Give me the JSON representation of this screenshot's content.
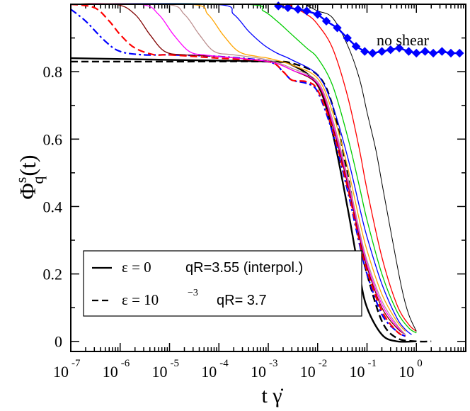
{
  "chart_data": {
    "type": "line",
    "x_scale": "log",
    "xlim": [
      1e-07,
      10
    ],
    "ylim": [
      -0.03,
      1.0
    ],
    "grid": false,
    "xlabel": "t γ̇",
    "ylabel": "Φ_q^s(t)",
    "x_ticks": [
      {
        "base": "10",
        "exp": "-7",
        "value": 1e-07
      },
      {
        "base": "10",
        "exp": "-6",
        "value": 1e-06
      },
      {
        "base": "10",
        "exp": "-5",
        "value": 1e-05
      },
      {
        "base": "10",
        "exp": "-4",
        "value": 0.0001
      },
      {
        "base": "10",
        "exp": "-3",
        "value": 0.001
      },
      {
        "base": "10",
        "exp": "-2",
        "value": 0.01
      },
      {
        "base": "10",
        "exp": "-1",
        "value": 0.1
      },
      {
        "base": "10",
        "exp": "0",
        "value": 1
      }
    ],
    "y_ticks": [
      {
        "label": "0",
        "value": 0
      },
      {
        "label": "0.2",
        "value": 0.2
      },
      {
        "label": "0.4",
        "value": 0.4
      },
      {
        "label": "0.6",
        "value": 0.6
      },
      {
        "label": "0.8",
        "value": 0.8
      }
    ],
    "annotation": "no shear",
    "legend": {
      "position": "lower-left",
      "entries": [
        {
          "style": "solid",
          "eps": "ε = 0",
          "q": "qR=3.55 (interpol.)"
        },
        {
          "style": "dashed",
          "eps": "ε = 10",
          "eps_exp": "−3",
          "q": "qR= 3.7"
        }
      ]
    },
    "series": [
      {
        "style": "solid",
        "color": "#000000",
        "width": 2.4,
        "points": [
          [
            1e-07,
            0.84
          ],
          [
            1e-05,
            0.835
          ],
          [
            0.001,
            0.83
          ],
          [
            0.003,
            0.82
          ],
          [
            0.01,
            0.76
          ],
          [
            0.02,
            0.62
          ],
          [
            0.04,
            0.4
          ],
          [
            0.07,
            0.2
          ],
          [
            0.1,
            0.1
          ],
          [
            0.2,
            0.02
          ],
          [
            0.4,
            0.0
          ],
          [
            1,
            0.0
          ]
        ]
      },
      {
        "style": "dashed",
        "color": "#000000",
        "width": 2.4,
        "points": [
          [
            1e-07,
            0.83
          ],
          [
            1e-05,
            0.83
          ],
          [
            0.001,
            0.83
          ],
          [
            0.003,
            0.825
          ],
          [
            0.01,
            0.79
          ],
          [
            0.02,
            0.7
          ],
          [
            0.04,
            0.5
          ],
          [
            0.07,
            0.3
          ],
          [
            0.1,
            0.2
          ],
          [
            0.2,
            0.06
          ],
          [
            0.4,
            0.01
          ],
          [
            1,
            0.0
          ],
          [
            2,
            0.0
          ]
        ]
      },
      {
        "style": "dashdot",
        "color": "#0000ff",
        "width": 2.2,
        "points": [
          [
            1e-07,
            0.985
          ],
          [
            2e-07,
            0.95
          ],
          [
            5e-07,
            0.89
          ],
          [
            1e-06,
            0.86
          ],
          [
            3e-06,
            0.85
          ],
          [
            1e-05,
            0.85
          ],
          [
            0.0001,
            0.845
          ],
          [
            0.001,
            0.83
          ],
          [
            0.002,
            0.8
          ],
          [
            0.003,
            0.775
          ],
          [
            0.006,
            0.765
          ],
          [
            0.01,
            0.74
          ],
          [
            0.02,
            0.62
          ],
          [
            0.04,
            0.45
          ],
          [
            0.07,
            0.29
          ],
          [
            0.1,
            0.2
          ],
          [
            0.2,
            0.08
          ],
          [
            0.4,
            0.03
          ],
          [
            0.6,
            0.015
          ]
        ]
      },
      {
        "style": "dashed",
        "color": "#ff0000",
        "width": 2.2,
        "points": [
          [
            1e-07,
            1.0
          ],
          [
            3e-07,
            0.99
          ],
          [
            6e-07,
            0.95
          ],
          [
            1e-06,
            0.91
          ],
          [
            2e-06,
            0.87
          ],
          [
            5e-06,
            0.85
          ],
          [
            1e-05,
            0.85
          ],
          [
            0.0001,
            0.84
          ],
          [
            0.001,
            0.83
          ],
          [
            0.002,
            0.8
          ],
          [
            0.003,
            0.775
          ],
          [
            0.006,
            0.77
          ],
          [
            0.01,
            0.745
          ],
          [
            0.02,
            0.63
          ],
          [
            0.04,
            0.46
          ],
          [
            0.07,
            0.3
          ],
          [
            0.1,
            0.21
          ],
          [
            0.2,
            0.09
          ],
          [
            0.4,
            0.03
          ],
          [
            0.6,
            0.015
          ]
        ]
      },
      {
        "style": "solid",
        "color": "#800000",
        "width": 1.3,
        "points": [
          [
            1e-07,
            1.0
          ],
          [
            8e-07,
            1.0
          ],
          [
            2e-06,
            0.97
          ],
          [
            4e-06,
            0.91
          ],
          [
            8e-06,
            0.86
          ],
          [
            2e-05,
            0.85
          ],
          [
            0.0001,
            0.845
          ],
          [
            0.001,
            0.83
          ],
          [
            0.003,
            0.805
          ],
          [
            0.01,
            0.76
          ],
          [
            0.02,
            0.64
          ],
          [
            0.04,
            0.47
          ],
          [
            0.07,
            0.31
          ],
          [
            0.1,
            0.22
          ],
          [
            0.2,
            0.1
          ],
          [
            0.4,
            0.04
          ],
          [
            0.6,
            0.02
          ]
        ]
      },
      {
        "style": "solid",
        "color": "#ff00ff",
        "width": 1.3,
        "points": [
          [
            1e-07,
            1.0
          ],
          [
            2.5e-06,
            1.0
          ],
          [
            6e-06,
            0.97
          ],
          [
            1.2e-05,
            0.91
          ],
          [
            2.5e-05,
            0.86
          ],
          [
            5e-05,
            0.85
          ],
          [
            0.0001,
            0.845
          ],
          [
            0.001,
            0.83
          ],
          [
            0.003,
            0.805
          ],
          [
            0.01,
            0.765
          ],
          [
            0.02,
            0.65
          ],
          [
            0.04,
            0.48
          ],
          [
            0.07,
            0.32
          ],
          [
            0.1,
            0.23
          ],
          [
            0.2,
            0.11
          ],
          [
            0.4,
            0.045
          ],
          [
            0.6,
            0.02
          ]
        ]
      },
      {
        "style": "solid",
        "color": "#bc8f8f",
        "width": 1.3,
        "points": [
          [
            1e-07,
            1.0
          ],
          [
            8e-06,
            1.0
          ],
          [
            2e-05,
            0.97
          ],
          [
            4e-05,
            0.91
          ],
          [
            8e-05,
            0.86
          ],
          [
            0.0002,
            0.85
          ],
          [
            0.001,
            0.835
          ],
          [
            0.003,
            0.81
          ],
          [
            0.01,
            0.77
          ],
          [
            0.02,
            0.66
          ],
          [
            0.04,
            0.49
          ],
          [
            0.07,
            0.33
          ],
          [
            0.1,
            0.24
          ],
          [
            0.2,
            0.12
          ],
          [
            0.4,
            0.05
          ],
          [
            0.6,
            0.02
          ]
        ]
      },
      {
        "style": "solid",
        "color": "#ffa500",
        "width": 1.3,
        "points": [
          [
            1e-07,
            1.0
          ],
          [
            2.5e-05,
            1.0
          ],
          [
            6e-05,
            0.97
          ],
          [
            0.00012,
            0.91
          ],
          [
            0.00025,
            0.86
          ],
          [
            0.0006,
            0.845
          ],
          [
            0.001,
            0.84
          ],
          [
            0.003,
            0.82
          ],
          [
            0.01,
            0.78
          ],
          [
            0.02,
            0.68
          ],
          [
            0.04,
            0.52
          ],
          [
            0.07,
            0.36
          ],
          [
            0.1,
            0.27
          ],
          [
            0.2,
            0.14
          ],
          [
            0.4,
            0.06
          ],
          [
            0.6,
            0.03
          ]
        ]
      },
      {
        "style": "solid",
        "color": "#0000ff",
        "width": 1.3,
        "points": [
          [
            1e-07,
            1.0
          ],
          [
            8e-05,
            1.0
          ],
          [
            0.0002,
            0.97
          ],
          [
            0.0004,
            0.92
          ],
          [
            0.0008,
            0.88
          ],
          [
            0.0015,
            0.855
          ],
          [
            0.003,
            0.835
          ],
          [
            0.01,
            0.79
          ],
          [
            0.02,
            0.7
          ],
          [
            0.04,
            0.55
          ],
          [
            0.07,
            0.4
          ],
          [
            0.1,
            0.31
          ],
          [
            0.2,
            0.17
          ],
          [
            0.4,
            0.07
          ],
          [
            0.6,
            0.035
          ],
          [
            0.8,
            0.02
          ]
        ]
      },
      {
        "style": "solid",
        "color": "#00cc00",
        "width": 1.3,
        "points": [
          [
            1e-07,
            1.0
          ],
          [
            0.0003,
            1.0
          ],
          [
            0.0008,
            0.98
          ],
          [
            0.0015,
            0.95
          ],
          [
            0.003,
            0.91
          ],
          [
            0.006,
            0.87
          ],
          [
            0.01,
            0.84
          ],
          [
            0.02,
            0.76
          ],
          [
            0.04,
            0.61
          ],
          [
            0.07,
            0.46
          ],
          [
            0.1,
            0.36
          ],
          [
            0.2,
            0.2
          ],
          [
            0.4,
            0.09
          ],
          [
            0.7,
            0.04
          ],
          [
            1,
            0.025
          ]
        ]
      },
      {
        "style": "solid",
        "color": "#ff0000",
        "width": 1.3,
        "points": [
          [
            1e-07,
            1.0
          ],
          [
            0.001,
            1.0
          ],
          [
            0.003,
            0.99
          ],
          [
            0.006,
            0.97
          ],
          [
            0.01,
            0.94
          ],
          [
            0.02,
            0.87
          ],
          [
            0.04,
            0.73
          ],
          [
            0.07,
            0.57
          ],
          [
            0.1,
            0.45
          ],
          [
            0.2,
            0.25
          ],
          [
            0.4,
            0.11
          ],
          [
            0.7,
            0.05
          ],
          [
            1,
            0.03
          ]
        ]
      },
      {
        "style": "solid",
        "color": "#000000",
        "width": 1.0,
        "points": [
          [
            1e-07,
            1.0
          ],
          [
            0.003,
            1.0
          ],
          [
            0.006,
            0.995
          ],
          [
            0.01,
            0.98
          ],
          [
            0.02,
            0.96
          ],
          [
            0.04,
            0.88
          ],
          [
            0.07,
            0.78
          ],
          [
            0.1,
            0.68
          ],
          [
            0.15,
            0.57
          ],
          [
            0.2,
            0.47
          ],
          [
            0.3,
            0.33
          ],
          [
            0.5,
            0.16
          ],
          [
            0.7,
            0.08
          ],
          [
            1,
            0.03
          ]
        ]
      },
      {
        "style": "diamonds",
        "color": "#0000ff",
        "width": 2.5,
        "points": [
          [
            0.0016,
            0.995
          ],
          [
            0.0025,
            0.99
          ],
          [
            0.004,
            0.985
          ],
          [
            0.006,
            0.98
          ],
          [
            0.01,
            0.97
          ],
          [
            0.015,
            0.95
          ],
          [
            0.025,
            0.93
          ],
          [
            0.04,
            0.9
          ],
          [
            0.06,
            0.875
          ],
          [
            0.09,
            0.86
          ],
          [
            0.13,
            0.855
          ],
          [
            0.2,
            0.86
          ],
          [
            0.3,
            0.865
          ],
          [
            0.45,
            0.87
          ],
          [
            0.7,
            0.86
          ],
          [
            1,
            0.855
          ],
          [
            1.5,
            0.86
          ],
          [
            2.2,
            0.855
          ],
          [
            3.3,
            0.86
          ],
          [
            5,
            0.855
          ],
          [
            7.5,
            0.855
          ]
        ]
      }
    ]
  }
}
